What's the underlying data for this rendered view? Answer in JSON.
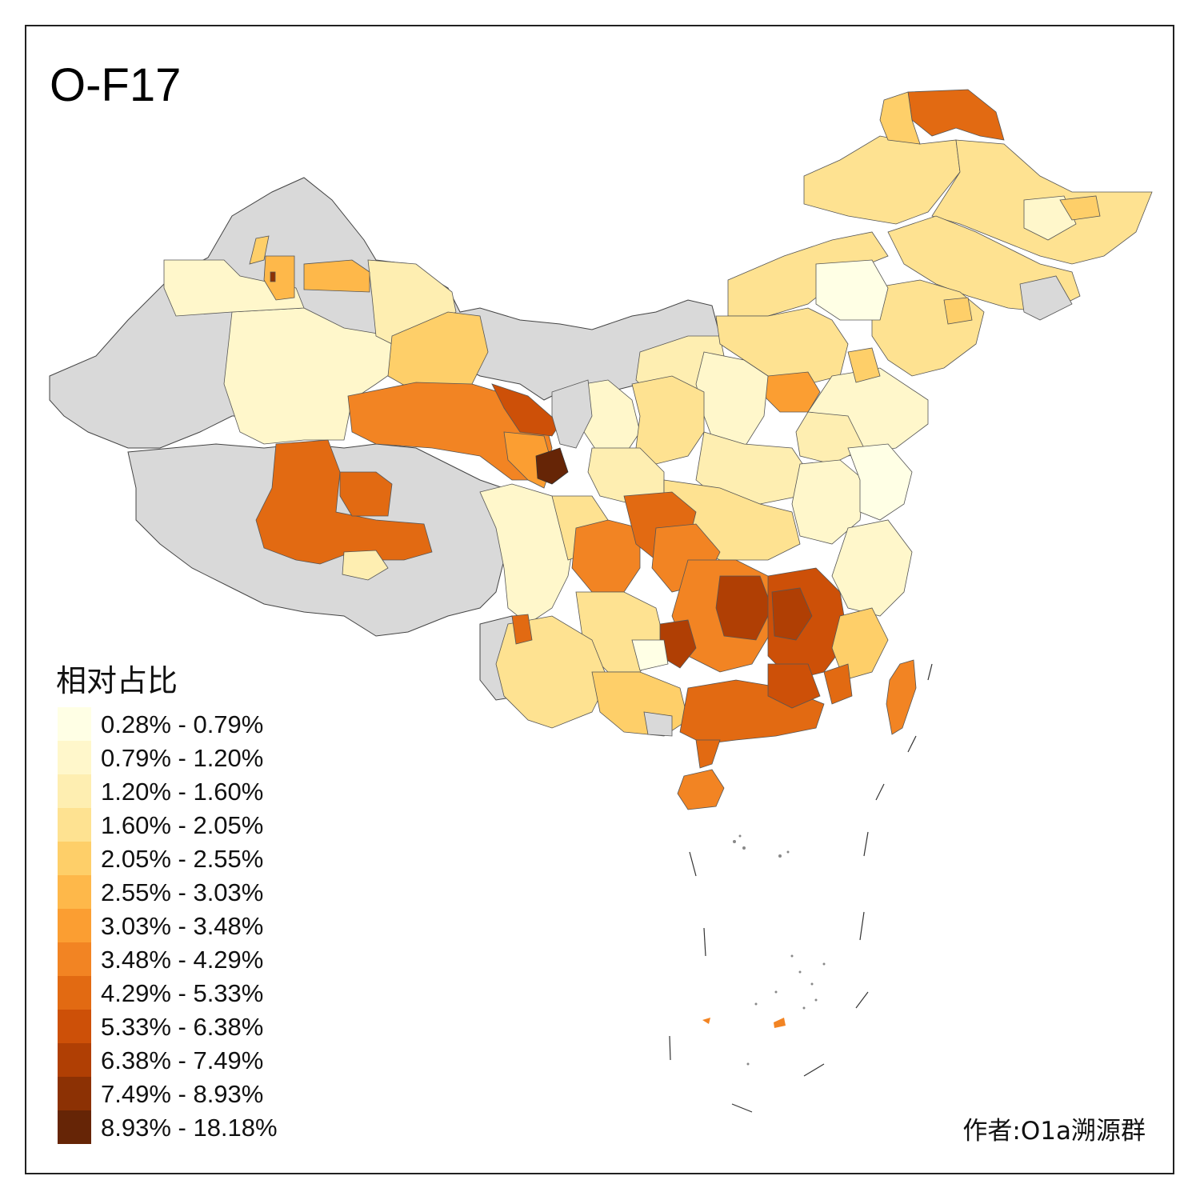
{
  "map": {
    "title": "O-F17",
    "legend_title": "相对占比",
    "credit": "作者:O1a溯源群",
    "no_data_color": "#d9d9d9",
    "legend": [
      {
        "label": "0.28% - 0.79%",
        "color": "#ffffe5"
      },
      {
        "label": "0.79% - 1.20%",
        "color": "#fff7cb"
      },
      {
        "label": "1.20% - 1.60%",
        "color": "#feeeb1"
      },
      {
        "label": "1.60% - 2.05%",
        "color": "#fee291"
      },
      {
        "label": "2.05% - 2.55%",
        "color": "#fecf69"
      },
      {
        "label": "2.55% - 3.03%",
        "color": "#feb84a"
      },
      {
        "label": "3.03% - 3.48%",
        "color": "#fb9e32"
      },
      {
        "label": "3.48% - 4.29%",
        "color": "#f28423"
      },
      {
        "label": "4.29% - 5.33%",
        "color": "#e26a12"
      },
      {
        "label": "5.33% - 6.38%",
        "color": "#cd5008"
      },
      {
        "label": "6.38% - 7.49%",
        "color": "#b03f04"
      },
      {
        "label": "7.49% - 8.93%",
        "color": "#8c3104"
      },
      {
        "label": "8.93% - 18.18%",
        "color": "#662506"
      }
    ]
  }
}
